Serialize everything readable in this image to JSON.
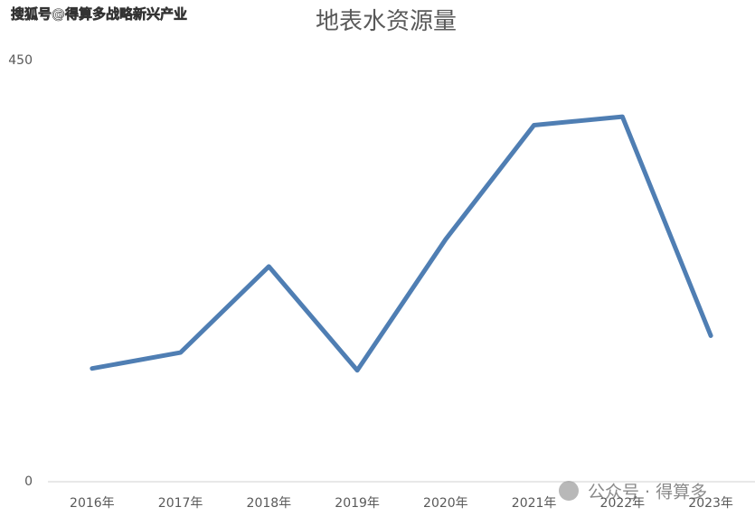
{
  "chart_data": {
    "type": "line",
    "title": "地表水资源量",
    "categories": [
      "2016年",
      "2017年",
      "2018年",
      "2019年",
      "2020年",
      "2021年",
      "2022年",
      "2023年"
    ],
    "series": [
      {
        "name": "地表水资源量",
        "color": "#4f7eb3",
        "values": [
          121,
          138,
          230,
          119,
          259,
          381,
          390,
          156
        ]
      }
    ],
    "ylim": [
      0,
      450
    ],
    "yticks": [
      0,
      450
    ],
    "grid": false
  },
  "watermarks": [
    "搜狐号@得算多战略新兴产业",
    "公众号 · 得算多"
  ]
}
